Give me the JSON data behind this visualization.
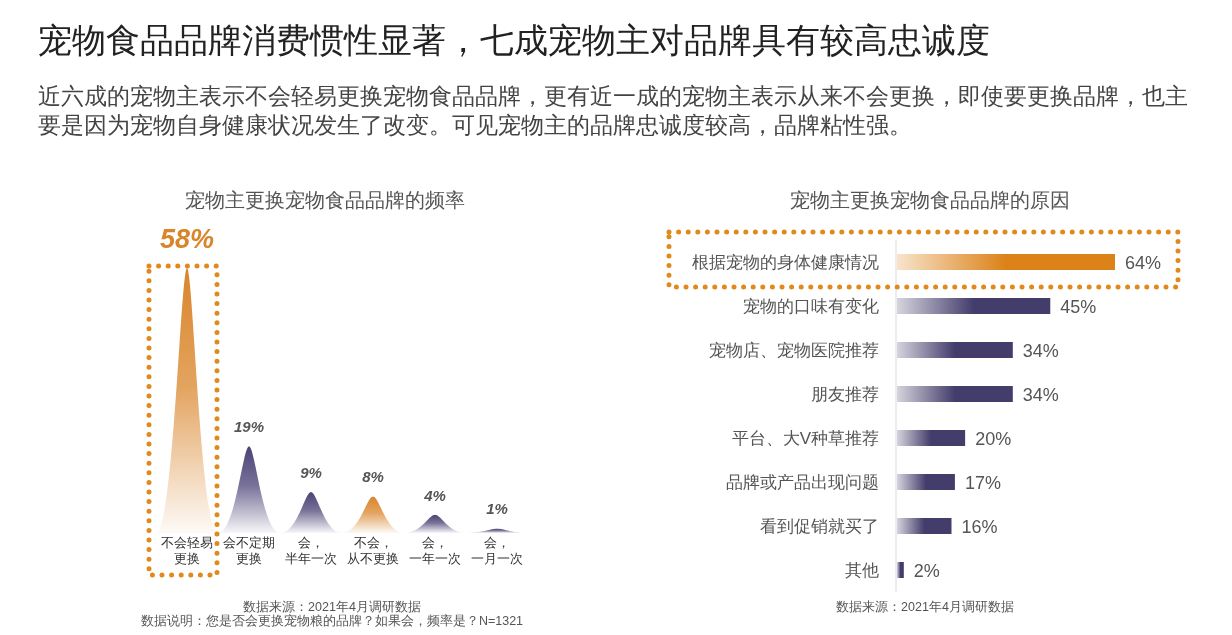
{
  "chart_data": [
    {
      "type": "other",
      "title": "宠物食品品牌消费惯性显著，七成宠物主对品牌具有较高忠诚度",
      "subtitle": "近六成的宠物主表示不会轻易更换宠物食品品牌，更有近一成的宠物主表示从来不会更换，即使要更换品牌，也主要是因为宠物自身健康状况发生了改变。可见宠物主的品牌忠诚度较高，品牌粘性强。"
    },
    {
      "type": "bar",
      "title": "宠物主更换宠物食品品牌的频率",
      "categories": [
        "不会轻易更换",
        "会不定期更换",
        "会，半年一次",
        "不会，从不更换",
        "会，一年一次",
        "会，一月一次"
      ],
      "values": [
        58,
        19,
        9,
        8,
        4,
        1
      ],
      "colors": [
        "#d9852b",
        "#4b4275",
        "#4b4275",
        "#d9852b",
        "#4b4275",
        "#4b4275"
      ],
      "value_labels": [
        "58%",
        "19%",
        "9%",
        "8%",
        "4%",
        "1%"
      ],
      "annotations": [
        "数据来源：2021年4月调研数据",
        "数据说明：您是否会更换宠物粮的品牌？如果会，频率是？N=1321"
      ]
    },
    {
      "type": "bar",
      "orientation": "horizontal",
      "title": "宠物主更换宠物食品品牌的原因",
      "categories": [
        "根据宠物的身体健康情况",
        "宠物的口味有变化",
        "宠物店、宠物医院推荐",
        "朋友推荐",
        "平台、大V种草推荐",
        "品牌或产品出现问题",
        "看到促销就买了",
        "其他"
      ],
      "values": [
        64,
        45,
        34,
        34,
        20,
        17,
        16,
        2
      ],
      "colors": [
        "#dc8218",
        "#433d6b",
        "#433d6b",
        "#433d6b",
        "#433d6b",
        "#433d6b",
        "#433d6b",
        "#433d6b"
      ],
      "value_labels": [
        "64%",
        "45%",
        "34%",
        "34%",
        "20%",
        "17%",
        "16%",
        "2%"
      ],
      "annotations": [
        "数据来源：2021年4月调研数据"
      ]
    }
  ]
}
